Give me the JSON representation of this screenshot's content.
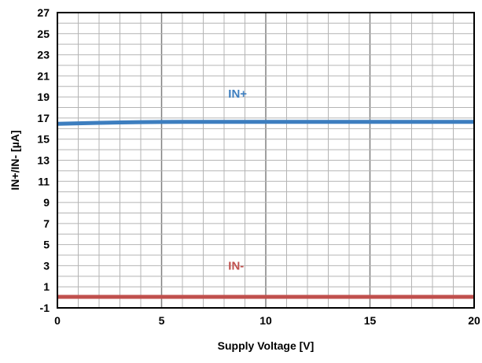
{
  "chart_data": {
    "type": "line",
    "title": "",
    "xlabel": "Supply Voltage [V]",
    "ylabel": "IN+/IN- [µA]",
    "xlim": [
      0,
      20
    ],
    "ylim": [
      -1,
      27
    ],
    "x_ticks": [
      0,
      5,
      10,
      15,
      20
    ],
    "y_ticks": [
      -1,
      1,
      3,
      5,
      7,
      9,
      11,
      13,
      15,
      17,
      19,
      21,
      23,
      25,
      27
    ],
    "x_minor_step": 1,
    "y_minor_step": 1,
    "grid": true,
    "series": [
      {
        "name": "IN+",
        "color": "#3d7ebf",
        "x": [
          0,
          1,
          2,
          3,
          4,
          5,
          6,
          8,
          10,
          12,
          14,
          16,
          18,
          20
        ],
        "y": [
          16.45,
          16.5,
          16.55,
          16.58,
          16.61,
          16.63,
          16.64,
          16.64,
          16.64,
          16.64,
          16.64,
          16.64,
          16.64,
          16.64
        ],
        "label_at": [
          8.2,
          19.3
        ]
      },
      {
        "name": "IN-",
        "color": "#c0504d",
        "x": [
          0,
          5,
          10,
          15,
          20
        ],
        "y": [
          0.05,
          0.05,
          0.05,
          0.05,
          0.05
        ],
        "label_at": [
          8.2,
          3.0
        ]
      }
    ]
  }
}
